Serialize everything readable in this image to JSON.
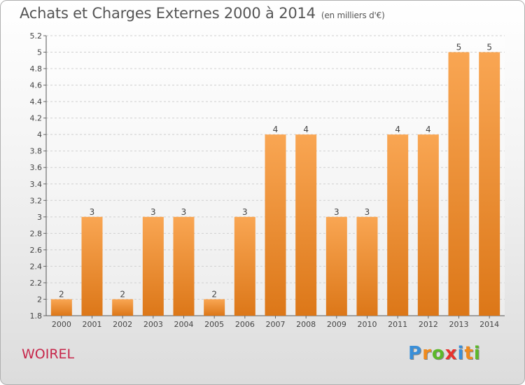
{
  "title": "Achats et Charges Externes 2000 à 2014",
  "subtitle": "(en milliers d'€)",
  "commune": "WOIREL",
  "logo": {
    "text": "Proxiti",
    "letters": [
      {
        "ch": "P",
        "color": "#3a8fd8"
      },
      {
        "ch": "r",
        "color": "#f08a1c"
      },
      {
        "ch": "o",
        "color": "#5cb82a"
      },
      {
        "ch": "x",
        "color": "#e8322e"
      },
      {
        "ch": "i",
        "color": "#3a8fd8"
      },
      {
        "ch": "t",
        "color": "#f08a1c"
      },
      {
        "ch": "i",
        "color": "#5cb82a"
      }
    ]
  },
  "chart_data": {
    "type": "bar",
    "categories": [
      "2000",
      "2001",
      "2002",
      "2003",
      "2004",
      "2005",
      "2006",
      "2007",
      "2008",
      "2009",
      "2010",
      "2011",
      "2012",
      "2013",
      "2014"
    ],
    "values": [
      2,
      3,
      2,
      3,
      3,
      2,
      3,
      4,
      4,
      3,
      3,
      4,
      4,
      5,
      5
    ],
    "data_labels": [
      "2",
      "3",
      "2",
      "3",
      "3",
      "2",
      "3",
      "4",
      "4",
      "3",
      "3",
      "4",
      "4",
      "5",
      "5"
    ],
    "bar_colors": {
      "top": "#f9a653",
      "bottom": "#dc7718"
    },
    "ylim": [
      1.8,
      5.2
    ],
    "yticks": [
      {
        "value": 1.8,
        "label": "1.8"
      },
      {
        "value": 2.0,
        "label": "2"
      },
      {
        "value": 2.2,
        "label": "2.2"
      },
      {
        "value": 2.4,
        "label": "2.4"
      },
      {
        "value": 2.6,
        "label": "2.6"
      },
      {
        "value": 2.8,
        "label": "2.8"
      },
      {
        "value": 3.0,
        "label": "3"
      },
      {
        "value": 3.2,
        "label": "3.2"
      },
      {
        "value": 3.4,
        "label": "3.4"
      },
      {
        "value": 3.6,
        "label": "3.6"
      },
      {
        "value": 3.8,
        "label": "3.8"
      },
      {
        "value": 4.0,
        "label": "4"
      },
      {
        "value": 4.2,
        "label": "4.2"
      },
      {
        "value": 4.4,
        "label": "4.4"
      },
      {
        "value": 4.6,
        "label": "4.6"
      },
      {
        "value": 4.8,
        "label": "4.8"
      },
      {
        "value": 5.0,
        "label": "5"
      },
      {
        "value": 5.2,
        "label": "5.2"
      }
    ],
    "grid": true,
    "xlabel": "",
    "ylabel": ""
  }
}
